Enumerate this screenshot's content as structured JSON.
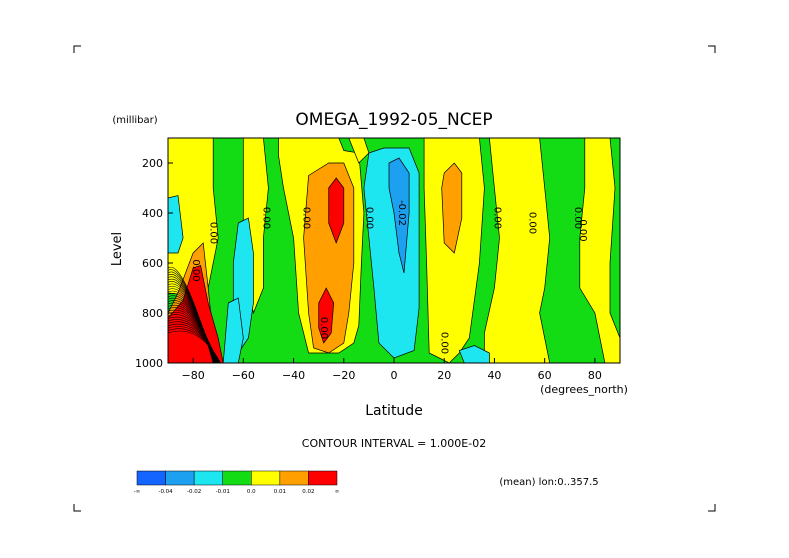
{
  "chart_data": {
    "type": "heatmap",
    "title": "OMEGA_1992-05_NCEP",
    "xlabel": "Latitude",
    "xunit": "(degrees_north)",
    "ylabel": "Level",
    "yunit": "(millibar)",
    "xlim": [
      -90,
      90
    ],
    "ylim": [
      1000,
      100
    ],
    "x_ticks": [
      -80,
      -60,
      -40,
      -20,
      0,
      20,
      40,
      60,
      80
    ],
    "y_ticks": [
      200,
      400,
      600,
      800,
      1000
    ],
    "contour_interval_text": "CONTOUR INTERVAL = 1.000E-02",
    "mean_text": "(mean) lon:0..357.5",
    "contour_labels": [
      {
        "text": "0.00",
        "x": -73,
        "y": 480
      },
      {
        "text": "0.00",
        "x": -80,
        "y": 630
      },
      {
        "text": "0.00",
        "x": -52,
        "y": 420
      },
      {
        "text": "0.00",
        "x": -36,
        "y": 420
      },
      {
        "text": "0.00",
        "x": -11,
        "y": 420
      },
      {
        "text": "-0.02",
        "x": 2,
        "y": 400
      },
      {
        "text": "0.00",
        "x": 40,
        "y": 420
      },
      {
        "text": "0.00",
        "x": 54,
        "y": 440
      },
      {
        "text": "0.00",
        "x": 72,
        "y": 420
      },
      {
        "text": "0.00",
        "x": 74,
        "y": 470
      },
      {
        "text": "0.00",
        "x": 19,
        "y": 920
      },
      {
        "text": "0.00",
        "x": -29,
        "y": 860
      }
    ],
    "legend": {
      "colors": [
        "#1464ff",
        "#1ea0f0",
        "#1ee6f0",
        "#14dc14",
        "#ffff00",
        "#ffa000",
        "#ff0000"
      ],
      "labels": [
        "-∞",
        "-0.04",
        "-0.02",
        "-0.01",
        "0.0",
        "0.01",
        "0.02",
        "∞"
      ]
    },
    "colors": {
      "neg3": "#1464ff",
      "neg2": "#1ea0f0",
      "neg1": "#1ee6f0",
      "zero_neg": "#14dc14",
      "zero_pos": "#ffff00",
      "pos1": "#ffa000",
      "pos2": "#ff0000"
    }
  }
}
